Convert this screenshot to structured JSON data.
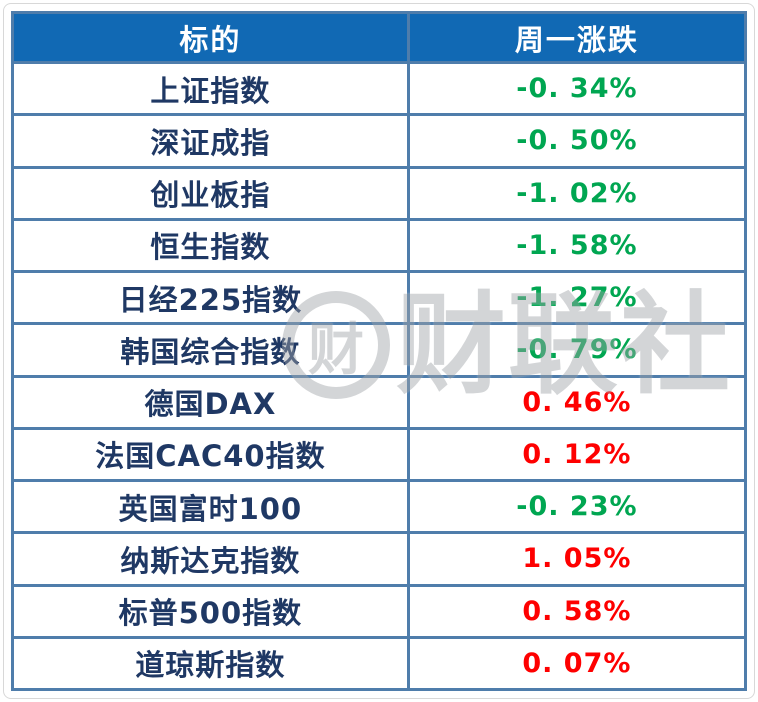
{
  "table": {
    "headers": [
      "标的",
      "周一涨跌"
    ],
    "rows": [
      {
        "label": "上证指数",
        "change": "-0. 34%",
        "direction": "down"
      },
      {
        "label": "深证成指",
        "change": "-0. 50%",
        "direction": "down"
      },
      {
        "label": "创业板指",
        "change": "-1. 02%",
        "direction": "down"
      },
      {
        "label": "恒生指数",
        "change": "-1. 58%",
        "direction": "down"
      },
      {
        "label": "日经225指数",
        "change": "-1. 27%",
        "direction": "down"
      },
      {
        "label": "韩国综合指数",
        "change": "-0. 79%",
        "direction": "down"
      },
      {
        "label": "德国DAX",
        "change": "0. 46%",
        "direction": "up"
      },
      {
        "label": "法国CAC40指数",
        "change": "0. 12%",
        "direction": "up"
      },
      {
        "label": "英国富时100",
        "change": "-0. 23%",
        "direction": "down"
      },
      {
        "label": "纳斯达克指数",
        "change": "1. 05%",
        "direction": "up"
      },
      {
        "label": "标普500指数",
        "change": "0. 58%",
        "direction": "up"
      },
      {
        "label": "道琼斯指数",
        "change": "0. 07%",
        "direction": "up"
      }
    ]
  },
  "watermark": {
    "logo_glyph": "财",
    "text": "财联社"
  },
  "colors": {
    "header_bg": "#1169b4",
    "header_text": "#ffffff",
    "border": "#4f7dab",
    "label_text": "#1f3864",
    "down_green": "#00a651",
    "up_red": "#fe0000"
  },
  "chart_data": {
    "type": "table",
    "title": "",
    "columns": [
      "标的",
      "周一涨跌"
    ],
    "rows": [
      [
        "上证指数",
        -0.34
      ],
      [
        "深证成指",
        -0.5
      ],
      [
        "创业板指",
        -1.02
      ],
      [
        "恒生指数",
        -1.58
      ],
      [
        "日经225指数",
        -1.27
      ],
      [
        "韩国综合指数",
        -0.79
      ],
      [
        "德国DAX",
        0.46
      ],
      [
        "法国CAC40指数",
        0.12
      ],
      [
        "英国富时100",
        -0.23
      ],
      [
        "纳斯达克指数",
        1.05
      ],
      [
        "标普500指数",
        0.58
      ],
      [
        "道琼斯指数",
        0.07
      ]
    ],
    "units": "%",
    "layout_hints": {
      "color_coding": "positive changes red (up), negative changes green (down), per Chinese market convention",
      "header_style": "blue background, white bold text",
      "grid": "thick steel-blue borders on all cells"
    }
  }
}
